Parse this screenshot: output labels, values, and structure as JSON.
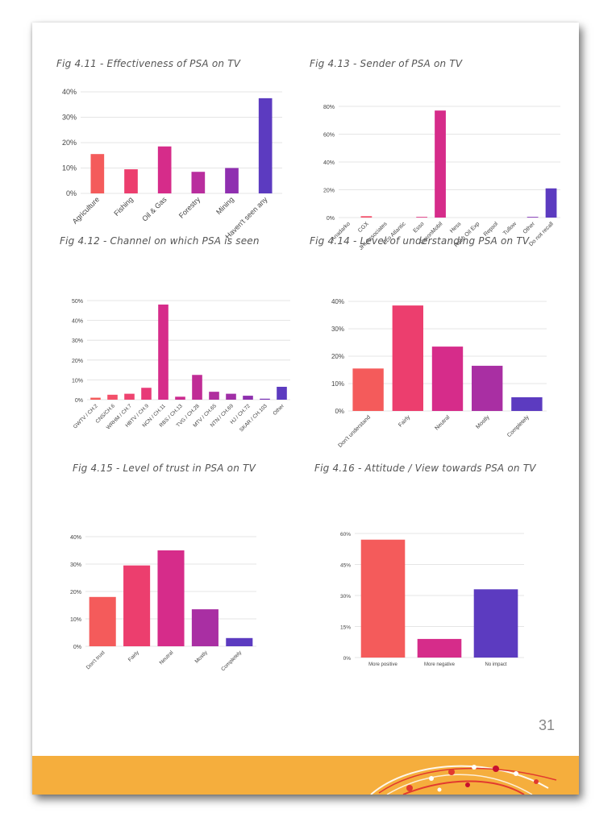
{
  "page_number": "31",
  "chart_data": [
    {
      "id": "fig411",
      "type": "bar",
      "title": "Fig 4.11 - Effectiveness of PSA on TV",
      "categories": [
        "Agriculture",
        "Fishing",
        "Oil & Gas",
        "Forestry",
        "Mining",
        "Haven't seen any"
      ],
      "values": [
        15.5,
        9.5,
        18.5,
        8.5,
        10,
        37.5
      ],
      "colors": [
        "#F45B5B",
        "#EC3E6E",
        "#D62C8A",
        "#B92E9E",
        "#8F2FB0",
        "#5C3BC0"
      ],
      "ylim": [
        0,
        40
      ],
      "yticks": [
        "0%",
        "10%",
        "20%",
        "30%",
        "40%"
      ],
      "grid": true
    },
    {
      "id": "fig413",
      "type": "bar",
      "title": "Fig 4.13 - Sender of PSA on TV",
      "categories": [
        "Anadarko",
        "CGX",
        "JHI Associates",
        "Eco Atlantic",
        "Esso",
        "ExxonMobil",
        "Hess",
        "Ratio Oil Exp",
        "Repsol",
        "Tullow",
        "Other",
        "Do not recall"
      ],
      "values": [
        0,
        1,
        0,
        0,
        0.5,
        77,
        0,
        0,
        0,
        0,
        0.5,
        21
      ],
      "colors": [
        "#F45B5B",
        "#F3506A",
        "#EE4470",
        "#E83A78",
        "#E03480",
        "#D62C8A",
        "#C72B92",
        "#B82E9C",
        "#A82FA6",
        "#9430AE",
        "#8030B5",
        "#5C3BC0"
      ],
      "ylim": [
        0,
        80
      ],
      "yticks": [
        "0%",
        "20%",
        "40%",
        "60%",
        "80%"
      ],
      "grid": true
    },
    {
      "id": "fig412",
      "type": "bar",
      "title": "Fig 4.12 - Channel on which PSA is seen",
      "categories": [
        "GWTV / CH.2",
        "CNS/CH.6",
        "WRHM / CH.7",
        "HBTV / CH.9",
        "NCN / CH.11",
        "RBS / CH.13",
        "TVG / CH.28",
        "MTV / CH.65",
        "NTN / CH.69",
        "HJ / CH.72",
        "SKAR / CH.103",
        "Other"
      ],
      "values": [
        1,
        2.5,
        3,
        6,
        48,
        1.5,
        12.5,
        4,
        3,
        2,
        0.5,
        6.5
      ],
      "colors": [
        "#F45B5B",
        "#F3506A",
        "#EE4470",
        "#E83A78",
        "#D62C8A",
        "#CC2B8F",
        "#C02C96",
        "#B02E9E",
        "#A02FA6",
        "#8E30AE",
        "#7A33B6",
        "#5C3BC0"
      ],
      "ylim": [
        0,
        50
      ],
      "yticks": [
        "0%",
        "10%",
        "20%",
        "30%",
        "40%",
        "50%"
      ],
      "grid": true
    },
    {
      "id": "fig414",
      "type": "bar",
      "title": "Fig 4.14 - Level of understanding PSA on TV",
      "categories": [
        "Don't understand",
        "Fairly",
        "Neutral",
        "Mostly",
        "Completely"
      ],
      "values": [
        15.5,
        38.5,
        23.5,
        16.5,
        5
      ],
      "colors": [
        "#F45B5B",
        "#EC3E6E",
        "#D62C8A",
        "#A92FA3",
        "#5C3BC0"
      ],
      "ylim": [
        0,
        40
      ],
      "yticks": [
        "0%",
        "10%",
        "20%",
        "30%",
        "40%"
      ],
      "grid": true
    },
    {
      "id": "fig415",
      "type": "bar",
      "title": "Fig 4.15 - Level of trust in PSA on TV",
      "categories": [
        "Don't trust",
        "Fairly",
        "Neutral",
        "Mostly",
        "Completely"
      ],
      "values": [
        18,
        29.5,
        35,
        13.5,
        3
      ],
      "colors": [
        "#F45B5B",
        "#EC3E6E",
        "#D62C8A",
        "#A92FA3",
        "#5C3BC0"
      ],
      "ylim": [
        0,
        40
      ],
      "yticks": [
        "0%",
        "10%",
        "20%",
        "30%",
        "40%"
      ],
      "grid": true
    },
    {
      "id": "fig416",
      "type": "bar",
      "title": "Fig 4.16 - Attitude / View towards PSA on TV",
      "categories": [
        "More positive",
        "More negative",
        "No impact"
      ],
      "values": [
        57,
        9,
        33
      ],
      "colors": [
        "#F45B5B",
        "#D62C8A",
        "#5C3BC0"
      ],
      "ylim": [
        0,
        60
      ],
      "yticks": [
        "0%",
        "15%",
        "30%",
        "45%",
        "60%"
      ],
      "grid": true
    }
  ]
}
